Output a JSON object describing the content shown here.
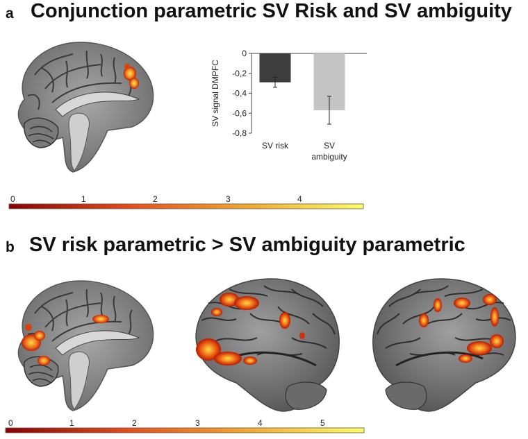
{
  "panel_a": {
    "letter": "a",
    "title": "Conjunction parametric SV Risk and SV ambiguity",
    "colorbar_ticks": [
      "0",
      "1",
      "2",
      "3",
      "4"
    ]
  },
  "panel_b": {
    "letter": "b",
    "title": "SV risk parametric > SV ambiguity parametric",
    "colorbar_ticks": [
      "0",
      "1",
      "2",
      "3",
      "4",
      "5"
    ]
  },
  "colors": {
    "bar_risk": "#3d3d3d",
    "bar_ambiguity": "#c4c4c4",
    "colorbar_low": "#8b0000",
    "colorbar_mid": "#e8501a",
    "colorbar_high": "#ffff66",
    "brain_gray": "#8a8a8a"
  },
  "chart_data": {
    "type": "bar",
    "categories": [
      "SV risk",
      "SV ambiguity"
    ],
    "category_labels": [
      [
        "SV risk"
      ],
      [
        "SV",
        "ambiguity"
      ]
    ],
    "values": [
      -0.29,
      -0.57
    ],
    "errors": [
      0.05,
      0.14
    ],
    "ylabel": "SV signal DMPFC",
    "ylim": [
      -0.8,
      0
    ],
    "yticks": [
      "0",
      "-0,2",
      "-0,4",
      "-0,6",
      "-0,8"
    ],
    "ytick_values": [
      0,
      -0.2,
      -0.4,
      -0.6,
      -0.8
    ],
    "grid": false
  }
}
